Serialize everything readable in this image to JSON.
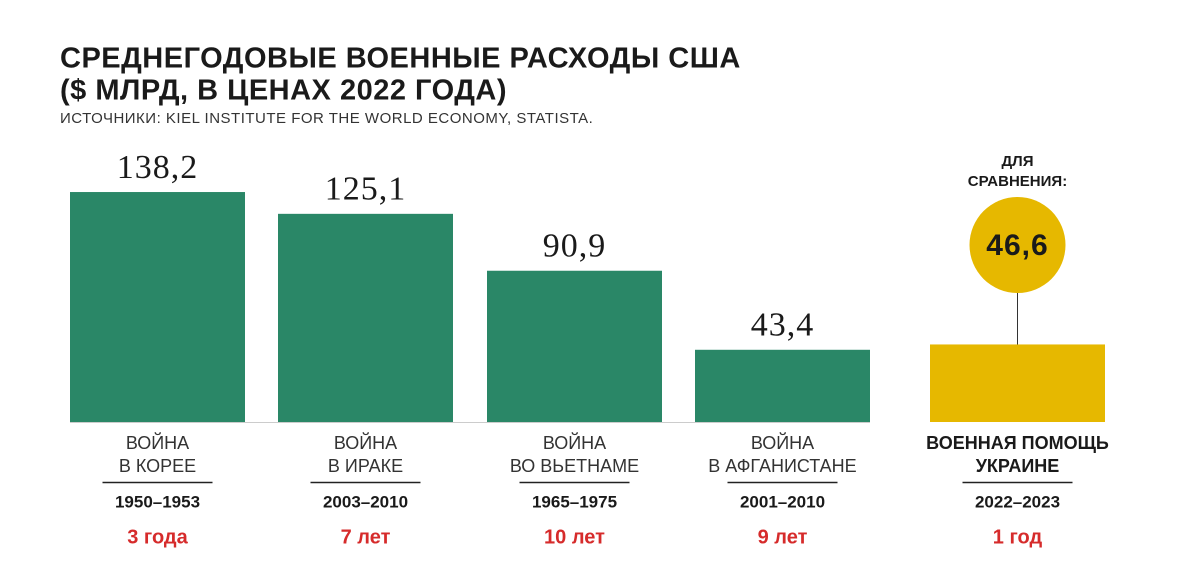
{
  "chart_data": {
    "type": "bar",
    "title": "СРЕДНЕГОДОВЫЕ ВОЕННЫЕ РАСХОДЫ США",
    "subtitle": "($ МЛРД, В ЦЕНАХ 2022 ГОДА)",
    "source": "ИСТОЧНИКИ: KIEL INSTITUTE FOR THE WORLD ECONOMY, STATISTA.",
    "categories": [
      [
        "ВОЙНА",
        "В КОРЕЕ"
      ],
      [
        "ВОЙНА",
        "В ИРАКЕ"
      ],
      [
        "ВОЙНА",
        "ВО ВЬЕТНАМЕ"
      ],
      [
        "ВОЙНА",
        "В АФГАНИСТАНЕ"
      ],
      [
        "ВОЕННАЯ ПОМОЩЬ",
        "УКРАИНЕ"
      ]
    ],
    "periods": [
      "1950–1953",
      "2003–2010",
      "1965–1975",
      "2001–2010",
      "2022–2023"
    ],
    "durations": [
      "3 года",
      "7 лет",
      "10 лет",
      "9 лет",
      "1 год"
    ],
    "values": [
      138.2,
      125.1,
      90.9,
      43.4,
      46.6
    ],
    "value_labels": [
      "138,2",
      "125,1",
      "90,9",
      "43,4",
      "46,6"
    ],
    "colors": [
      "#2a8767",
      "#2a8767",
      "#2a8767",
      "#2a8767",
      "#e6b800"
    ],
    "annotation": [
      "ДЛЯ",
      "СРАВНЕНИЯ:"
    ]
  }
}
